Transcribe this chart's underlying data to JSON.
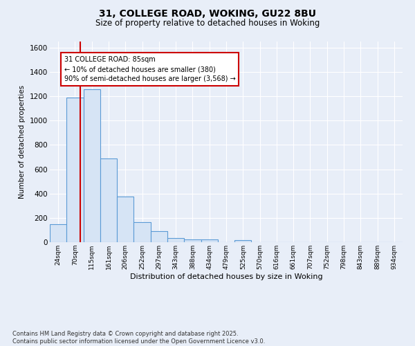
{
  "title": "31, COLLEGE ROAD, WOKING, GU22 8BU",
  "subtitle": "Size of property relative to detached houses in Woking",
  "xlabel": "Distribution of detached houses by size in Woking",
  "ylabel": "Number of detached properties",
  "bar_labels": [
    "24sqm",
    "70sqm",
    "115sqm",
    "161sqm",
    "206sqm",
    "252sqm",
    "297sqm",
    "343sqm",
    "388sqm",
    "434sqm",
    "479sqm",
    "525sqm",
    "570sqm",
    "616sqm",
    "661sqm",
    "707sqm",
    "752sqm",
    "798sqm",
    "843sqm",
    "889sqm",
    "934sqm"
  ],
  "bar_values": [
    150,
    1190,
    1260,
    690,
    375,
    165,
    90,
    35,
    25,
    20,
    0,
    15,
    0,
    0,
    0,
    0,
    0,
    0,
    0,
    0,
    0
  ],
  "bar_color": "#d6e4f5",
  "bar_edge_color": "#5b9bd5",
  "red_line_x": 1.3,
  "annotation_text": "31 COLLEGE ROAD: 85sqm\n← 10% of detached houses are smaller (380)\n90% of semi-detached houses are larger (3,568) →",
  "annotation_box_color": "#ffffff",
  "annotation_edge_color": "#cc0000",
  "ylim": [
    0,
    1650
  ],
  "yticks": [
    0,
    200,
    400,
    600,
    800,
    1000,
    1200,
    1400,
    1600
  ],
  "background_color": "#e8eef8",
  "grid_color": "#ffffff",
  "footer_line1": "Contains HM Land Registry data © Crown copyright and database right 2025.",
  "footer_line2": "Contains public sector information licensed under the Open Government Licence v3.0."
}
